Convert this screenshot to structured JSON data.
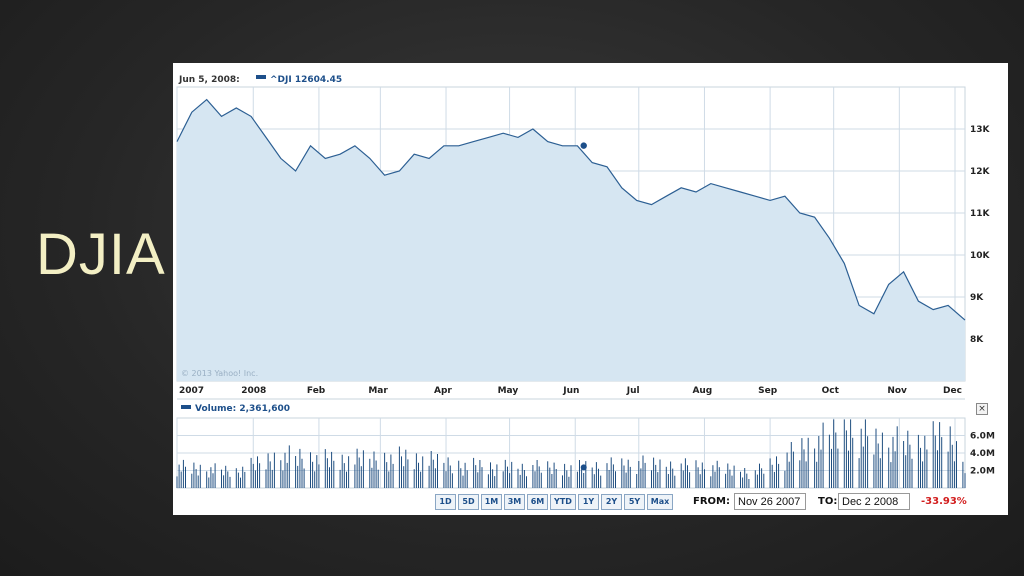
{
  "slide": {
    "title": "DJIA"
  },
  "chart_header": {
    "date": "Jun 5, 2008:",
    "series_label": "^DJI 12604.45",
    "copyright": "© 2013 Yahoo! Inc."
  },
  "volume_header": {
    "label": "Volume: 2,361,600"
  },
  "close_label": "×",
  "controls": {
    "ranges": [
      "1D",
      "5D",
      "1M",
      "3M",
      "6M",
      "YTD",
      "1Y",
      "2Y",
      "5Y",
      "Max"
    ],
    "from_label": "FROM:",
    "from_value": "Nov 26 2007",
    "to_label": "TO:",
    "to_value": "Dec 2 2008",
    "change": "-33.93%"
  },
  "colors": {
    "line": "#2c5f93",
    "fill": "#d6e6f2",
    "grid": "#cfdbe6",
    "volume": "#1f4e80",
    "negative": "#d21e1e",
    "title": "#f3efc4"
  },
  "chart_data": [
    {
      "type": "area",
      "series": [
        {
          "name": "^DJI",
          "unit": "points"
        }
      ],
      "x_axis_labels": [
        "2007",
        "2008",
        "Feb",
        "Mar",
        "Apr",
        "May",
        "Jun",
        "Jul",
        "Aug",
        "Sep",
        "Oct",
        "Nov",
        "Dec"
      ],
      "x": [
        "2007-11-26",
        "2007-12-03",
        "2007-12-10",
        "2007-12-17",
        "2007-12-24",
        "2007-12-31",
        "2008-01-07",
        "2008-01-14",
        "2008-01-21",
        "2008-01-28",
        "2008-02-04",
        "2008-02-11",
        "2008-02-18",
        "2008-02-25",
        "2008-03-03",
        "2008-03-10",
        "2008-03-17",
        "2008-03-24",
        "2008-03-31",
        "2008-04-07",
        "2008-04-14",
        "2008-04-21",
        "2008-04-28",
        "2008-05-05",
        "2008-05-12",
        "2008-05-19",
        "2008-05-26",
        "2008-06-02",
        "2008-06-09",
        "2008-06-16",
        "2008-06-23",
        "2008-06-30",
        "2008-07-07",
        "2008-07-14",
        "2008-07-21",
        "2008-07-28",
        "2008-08-04",
        "2008-08-11",
        "2008-08-18",
        "2008-08-25",
        "2008-09-01",
        "2008-09-08",
        "2008-09-15",
        "2008-09-22",
        "2008-09-29",
        "2008-10-06",
        "2008-10-13",
        "2008-10-20",
        "2008-10-27",
        "2008-11-03",
        "2008-11-10",
        "2008-11-17",
        "2008-11-24",
        "2008-12-02"
      ],
      "values": [
        12700,
        13400,
        13700,
        13300,
        13500,
        13300,
        12800,
        12300,
        12000,
        12600,
        12300,
        12400,
        12600,
        12300,
        11900,
        12000,
        12400,
        12300,
        12600,
        12600,
        12700,
        12800,
        12900,
        12800,
        13000,
        12700,
        12600,
        12600,
        12200,
        12100,
        11600,
        11300,
        11200,
        11400,
        11600,
        11500,
        11700,
        11600,
        11500,
        11400,
        11300,
        11400,
        11000,
        10900,
        10400,
        9800,
        8800,
        8600,
        9300,
        9600,
        8900,
        8700,
        8800,
        8450
      ],
      "y_axis_labels": [
        "13K",
        "12K",
        "11K",
        "10K",
        "9K",
        "8K"
      ],
      "ylim": [
        7000,
        14000
      ],
      "highlight": {
        "x": "2008-06-05",
        "value": 12604.45
      }
    },
    {
      "type": "bar",
      "series": [
        {
          "name": "Volume",
          "unit": "shares"
        }
      ],
      "y_axis_labels": [
        "6.0M",
        "4.0M",
        "2.0M"
      ],
      "ylim": [
        0,
        8000000
      ],
      "x": [
        "2007-11-26",
        "2007-12-24",
        "2008-01-14",
        "2008-02-11",
        "2008-03-10",
        "2008-04-07",
        "2008-05-05",
        "2008-06-02",
        "2008-06-30",
        "2008-07-28",
        "2008-08-25",
        "2008-09-15",
        "2008-09-29",
        "2008-10-06",
        "2008-10-20",
        "2008-11-10",
        "2008-11-24",
        "2008-12-02"
      ],
      "values": [
        2400000,
        1800000,
        3600000,
        3000000,
        3400000,
        2600000,
        2200000,
        2300000,
        2600000,
        2400000,
        1800000,
        4200000,
        5500000,
        7000000,
        5200000,
        4800000,
        5800000,
        3000000
      ],
      "highlight": {
        "x": "2008-06-05",
        "value": 2361600
      }
    }
  ]
}
